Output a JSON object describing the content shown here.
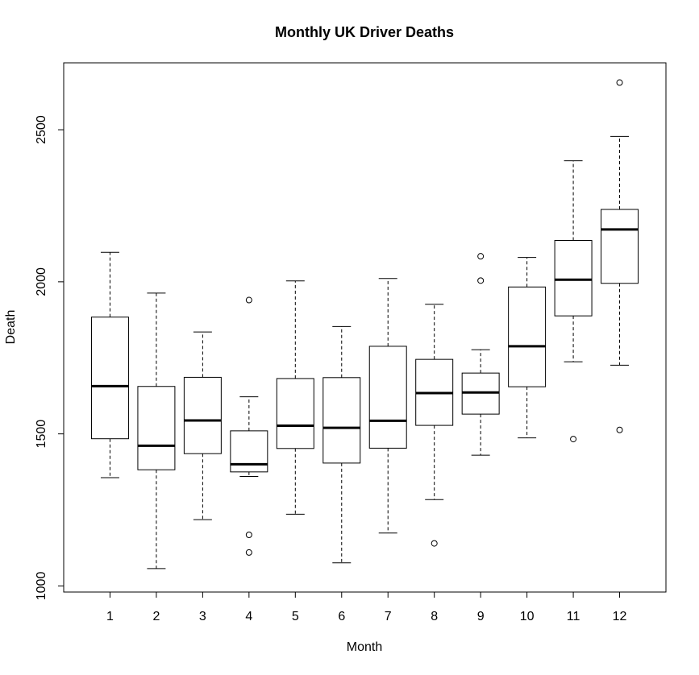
{
  "chart_data": {
    "type": "box",
    "title": "Monthly UK Driver Deaths",
    "xlabel": "Month",
    "ylabel": "Death",
    "categories": [
      "1",
      "2",
      "3",
      "4",
      "5",
      "6",
      "7",
      "8",
      "9",
      "10",
      "11",
      "12"
    ],
    "ylim": [
      980,
      2720
    ],
    "yticks": [
      1000,
      1500,
      2000,
      2500
    ],
    "grid": false,
    "boxes": [
      {
        "category": "1",
        "whisker_low": 1356,
        "q1": 1484,
        "median": 1657,
        "q3": 1884,
        "whisker_high": 2097,
        "outliers": []
      },
      {
        "category": "2",
        "whisker_low": 1057,
        "q1": 1382,
        "median": 1461,
        "q3": 1656,
        "whisker_high": 1963,
        "outliers": []
      },
      {
        "category": "3",
        "whisker_low": 1218,
        "q1": 1435,
        "median": 1544,
        "q3": 1686,
        "whisker_high": 1835,
        "outliers": []
      },
      {
        "category": "4",
        "whisker_low": 1360,
        "q1": 1375,
        "median": 1400,
        "q3": 1510,
        "whisker_high": 1622,
        "outliers": [
          1940,
          1168,
          1110
        ]
      },
      {
        "category": "5",
        "whisker_low": 1236,
        "q1": 1452,
        "median": 1527,
        "q3": 1682,
        "whisker_high": 2003,
        "outliers": []
      },
      {
        "category": "6",
        "whisker_low": 1076,
        "q1": 1404,
        "median": 1520,
        "q3": 1685,
        "whisker_high": 1853,
        "outliers": []
      },
      {
        "category": "7",
        "whisker_low": 1174,
        "q1": 1453,
        "median": 1543,
        "q3": 1788,
        "whisker_high": 2011,
        "outliers": []
      },
      {
        "category": "8",
        "whisker_low": 1284,
        "q1": 1528,
        "median": 1634,
        "q3": 1745,
        "whisker_high": 1926,
        "outliers": [
          1140
        ]
      },
      {
        "category": "9",
        "whisker_low": 1430,
        "q1": 1565,
        "median": 1636,
        "q3": 1700,
        "whisker_high": 1777,
        "outliers": [
          2084,
          2004
        ]
      },
      {
        "category": "10",
        "whisker_low": 1487,
        "q1": 1655,
        "median": 1788,
        "q3": 1983,
        "whisker_high": 2080,
        "outliers": []
      },
      {
        "category": "11",
        "whisker_low": 1737,
        "q1": 1888,
        "median": 2007,
        "q3": 2136,
        "whisker_high": 2398,
        "outliers": [
          1483
        ]
      },
      {
        "category": "12",
        "whisker_low": 1726,
        "q1": 1995,
        "median": 2172,
        "q3": 2238,
        "whisker_high": 2478,
        "outliers": [
          2655,
          1513
        ]
      }
    ]
  }
}
